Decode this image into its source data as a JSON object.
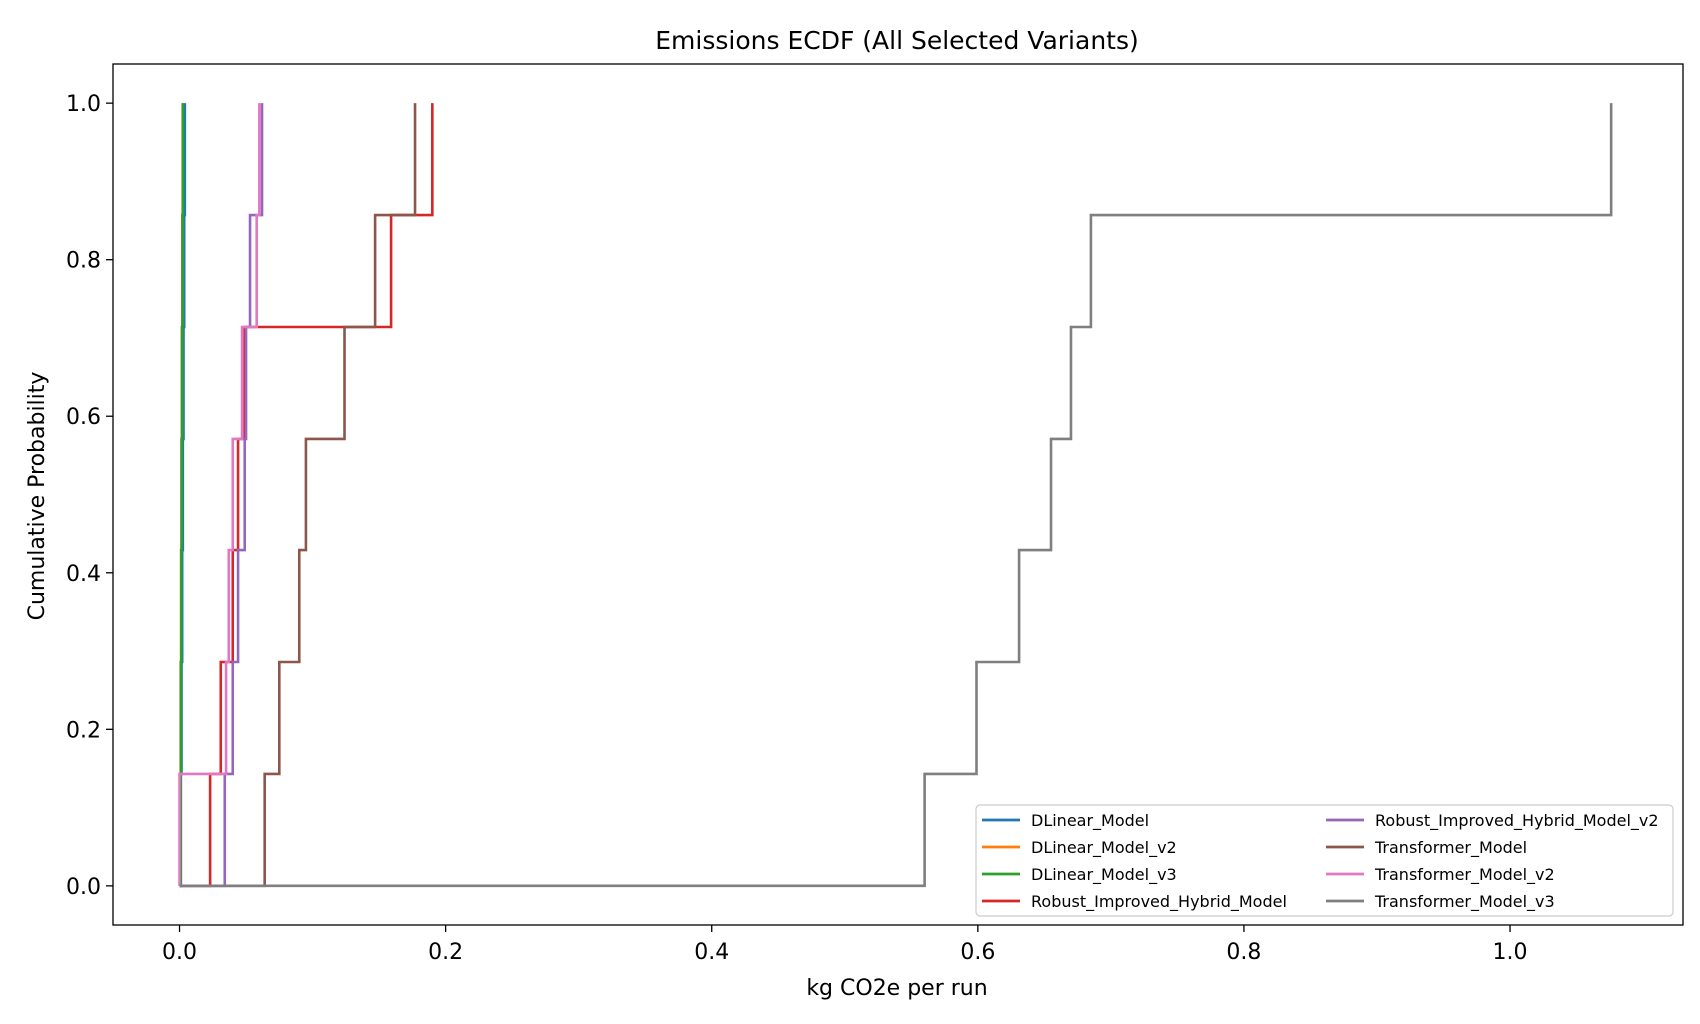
{
  "chart_data": {
    "type": "line",
    "step": "post",
    "title": "Emissions ECDF (All Selected Variants)",
    "xlabel": "kg CO2e per run",
    "ylabel": "Cumulative Probability",
    "xlim": [
      -0.05,
      1.13
    ],
    "ylim": [
      -0.05,
      1.05
    ],
    "xticks": [
      0.0,
      0.2,
      0.4,
      0.6,
      0.8,
      1.0
    ],
    "xtick_labels": [
      "0.0",
      "0.2",
      "0.4",
      "0.6",
      "0.8",
      "1.0"
    ],
    "yticks": [
      0.0,
      0.2,
      0.4,
      0.6,
      0.8,
      1.0
    ],
    "ytick_labels": [
      "0.0",
      "0.2",
      "0.4",
      "0.6",
      "0.8",
      "1.0"
    ],
    "grid": false,
    "legend_position": "lower-right",
    "legend_columns": 2,
    "series": [
      {
        "name": "DLinear_Model",
        "color": "#1f77b4",
        "x": [
          0.0005,
          0.001,
          0.0015,
          0.002,
          0.0025,
          0.003,
          0.0035,
          0.004
        ],
        "y": [
          0.0,
          0.143,
          0.286,
          0.429,
          0.571,
          0.714,
          0.857,
          1.0
        ]
      },
      {
        "name": "DLinear_Model_v2",
        "color": "#ff7f0e",
        "x": [
          0.0003,
          0.0006,
          0.0009,
          0.0012,
          0.0015,
          0.0018,
          0.0021,
          0.0024
        ],
        "y": [
          0.0,
          0.143,
          0.286,
          0.429,
          0.571,
          0.714,
          0.857,
          1.0
        ]
      },
      {
        "name": "DLinear_Model_v3",
        "color": "#2ca02c",
        "x": [
          0.0004,
          0.0007,
          0.001,
          0.0013,
          0.0016,
          0.0019,
          0.0022,
          0.0025
        ],
        "y": [
          0.0,
          0.143,
          0.286,
          0.429,
          0.571,
          0.714,
          0.857,
          1.0
        ]
      },
      {
        "name": "Robust_Improved_Hybrid_Model",
        "color": "#d62728",
        "x": [
          0.0,
          0.023,
          0.031,
          0.04,
          0.044,
          0.049,
          0.159,
          0.19
        ],
        "y": [
          0.0,
          0.143,
          0.286,
          0.429,
          0.571,
          0.714,
          0.857,
          1.0
        ]
      },
      {
        "name": "Robust_Improved_Hybrid_Model_v2",
        "color": "#9467bd",
        "x": [
          0.0,
          0.034,
          0.04,
          0.044,
          0.049,
          0.05,
          0.053,
          0.062
        ],
        "y": [
          0.0,
          0.143,
          0.286,
          0.429,
          0.571,
          0.714,
          0.857,
          1.0
        ]
      },
      {
        "name": "Transformer_Model",
        "color": "#8c564b",
        "x": [
          0.0,
          0.064,
          0.075,
          0.09,
          0.095,
          0.124,
          0.147,
          0.177
        ],
        "y": [
          0.0,
          0.143,
          0.286,
          0.429,
          0.571,
          0.714,
          0.857,
          1.0
        ]
      },
      {
        "name": "Transformer_Model_v2",
        "color": "#e377c2",
        "x": [
          0.0,
          0.0,
          0.035,
          0.037,
          0.04,
          0.047,
          0.058,
          0.06
        ],
        "y": [
          0.0,
          0.143,
          0.286,
          0.429,
          0.571,
          0.714,
          0.857,
          1.0
        ]
      },
      {
        "name": "Transformer_Model_v3",
        "color": "#7f7f7f",
        "x": [
          0.0,
          0.56,
          0.599,
          0.631,
          0.655,
          0.67,
          0.685,
          1.076
        ],
        "y": [
          0.0,
          0.143,
          0.286,
          0.429,
          0.571,
          0.714,
          0.857,
          1.0
        ]
      }
    ]
  }
}
